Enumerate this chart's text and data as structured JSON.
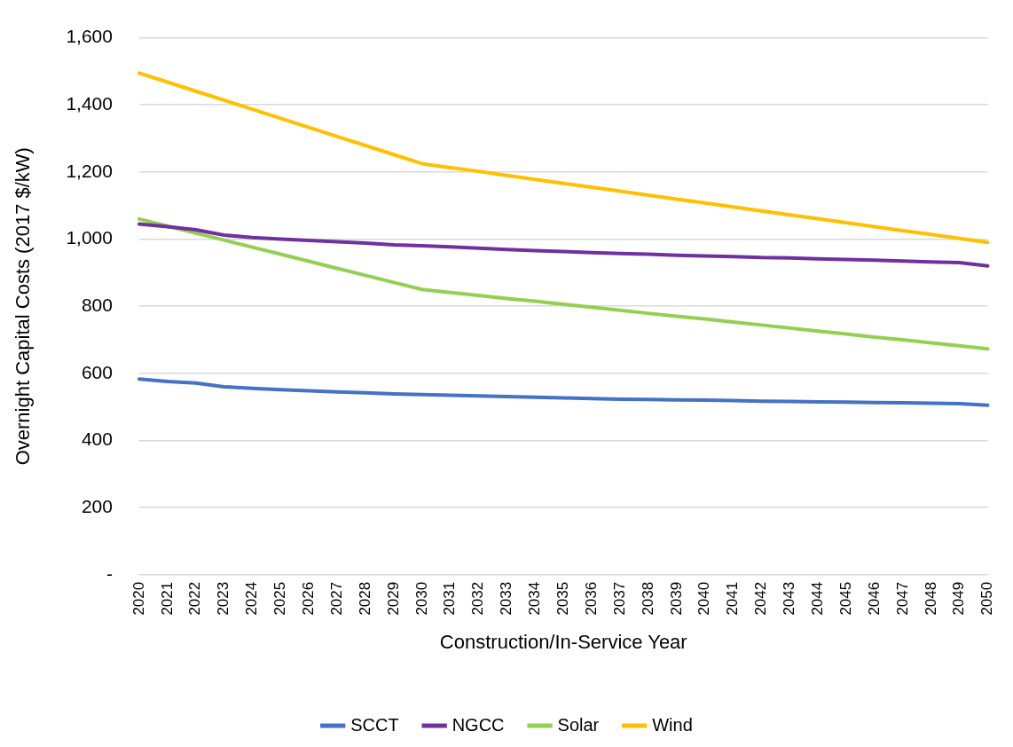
{
  "chart_data": {
    "type": "line",
    "xlabel": "Construction/In-Service Year",
    "ylabel": "Overnight Capital Costs (2017 $/kW)",
    "categories": [
      "2020",
      "2021",
      "2022",
      "2023",
      "2024",
      "2025",
      "2026",
      "2027",
      "2028",
      "2029",
      "2030",
      "2031",
      "2032",
      "2033",
      "2034",
      "2035",
      "2036",
      "2037",
      "2038",
      "2039",
      "2040",
      "2041",
      "2042",
      "2043",
      "2044",
      "2045",
      "2046",
      "2047",
      "2048",
      "2049",
      "2050"
    ],
    "ylim": [
      0,
      1600
    ],
    "yticks": [
      {
        "value": 0,
        "label": "-"
      },
      {
        "value": 200,
        "label": "200"
      },
      {
        "value": 400,
        "label": "400"
      },
      {
        "value": 600,
        "label": "600"
      },
      {
        "value": 800,
        "label": "800"
      },
      {
        "value": 1000,
        "label": "1,000"
      },
      {
        "value": 1200,
        "label": "1,200"
      },
      {
        "value": 1400,
        "label": "1,400"
      },
      {
        "value": 1600,
        "label": "1,600"
      }
    ],
    "grid": "y",
    "legend": "bottom",
    "marker": "none",
    "line_style": "solid",
    "series": [
      {
        "name": "SCCT",
        "color": "#4472c4",
        "values": [
          583,
          576,
          571,
          560,
          555,
          551,
          548,
          545,
          542,
          539,
          537,
          535,
          533,
          531,
          529,
          527,
          525,
          523,
          522,
          521,
          520,
          519,
          517,
          516,
          515,
          514,
          513,
          512,
          511,
          510,
          505
        ]
      },
      {
        "name": "NGCC",
        "color": "#7030a0",
        "values": [
          1045,
          1037,
          1028,
          1012,
          1005,
          1000,
          996,
          992,
          988,
          983,
          980,
          977,
          973,
          969,
          966,
          963,
          960,
          957,
          955,
          952,
          950,
          948,
          945,
          944,
          941,
          939,
          937,
          935,
          932,
          930,
          920
        ]
      },
      {
        "name": "Solar",
        "color": "#92d050",
        "values": [
          1060,
          1039,
          1018,
          997,
          976,
          955,
          934,
          913,
          892,
          871,
          850,
          841,
          832,
          823,
          815,
          806,
          797,
          788,
          779,
          770,
          762,
          753,
          744,
          735,
          726,
          717,
          708,
          700,
          691,
          682,
          673
        ]
      },
      {
        "name": "Wind",
        "color": "#ffc000",
        "values": [
          1495,
          1468,
          1441,
          1414,
          1387,
          1360,
          1333,
          1306,
          1279,
          1252,
          1225,
          1213,
          1202,
          1190,
          1178,
          1166,
          1155,
          1143,
          1131,
          1119,
          1108,
          1096,
          1084,
          1072,
          1061,
          1049,
          1037,
          1025,
          1014,
          1002,
          990
        ]
      }
    ]
  }
}
